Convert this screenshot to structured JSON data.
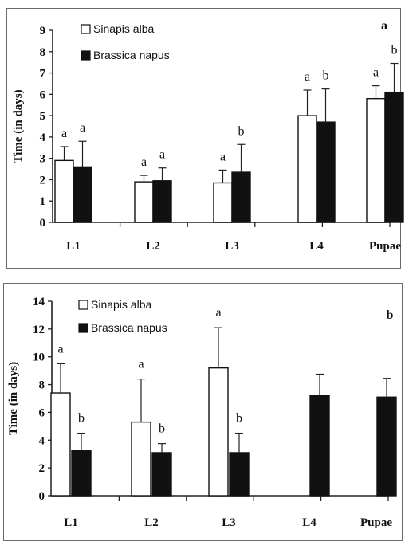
{
  "chart_data": [
    {
      "type": "bar",
      "panel_label": "a",
      "ylabel": "Time (in days)",
      "xlabel": "",
      "ylim": [
        0,
        9
      ],
      "yticks": [
        0,
        1,
        2,
        3,
        4,
        5,
        6,
        7,
        8,
        9
      ],
      "categories": [
        "L1",
        "L2",
        "L3",
        "L4",
        "Pupae"
      ],
      "legend_position": "top-left",
      "series": [
        {
          "name": "Sinapis alba",
          "color": "#ffffff",
          "values": [
            2.9,
            1.9,
            1.85,
            5.0,
            5.8
          ],
          "error": [
            0.65,
            0.3,
            0.6,
            1.2,
            0.6
          ],
          "letters": [
            "a",
            "a",
            "a",
            "a",
            "a"
          ]
        },
        {
          "name": "Brassica napus",
          "color": "#111111",
          "values": [
            2.6,
            1.95,
            2.35,
            4.7,
            6.1
          ],
          "error": [
            1.2,
            0.6,
            1.3,
            1.55,
            1.35
          ],
          "letters": [
            "a",
            "a",
            "b",
            "b",
            "b"
          ]
        }
      ]
    },
    {
      "type": "bar",
      "panel_label": "b",
      "ylabel": "Time (in days)",
      "xlabel": "",
      "ylim": [
        0,
        14
      ],
      "yticks": [
        0,
        2,
        4,
        6,
        8,
        10,
        12,
        14
      ],
      "categories": [
        "L1",
        "L2",
        "L3",
        "L4",
        "Pupae"
      ],
      "legend_position": "top-left",
      "series": [
        {
          "name": "Sinapis alba",
          "color": "#ffffff",
          "values": [
            7.4,
            5.3,
            9.2,
            null,
            null
          ],
          "error": [
            2.1,
            3.1,
            2.9,
            null,
            null
          ],
          "letters": [
            "a",
            "a",
            "a",
            "",
            ""
          ]
        },
        {
          "name": "Brassica napus",
          "color": "#111111",
          "values": [
            3.25,
            3.1,
            3.1,
            7.2,
            7.1
          ],
          "error": [
            1.25,
            0.65,
            1.4,
            1.55,
            1.35
          ],
          "letters": [
            "b",
            "b",
            "b",
            "",
            ""
          ]
        }
      ]
    }
  ]
}
